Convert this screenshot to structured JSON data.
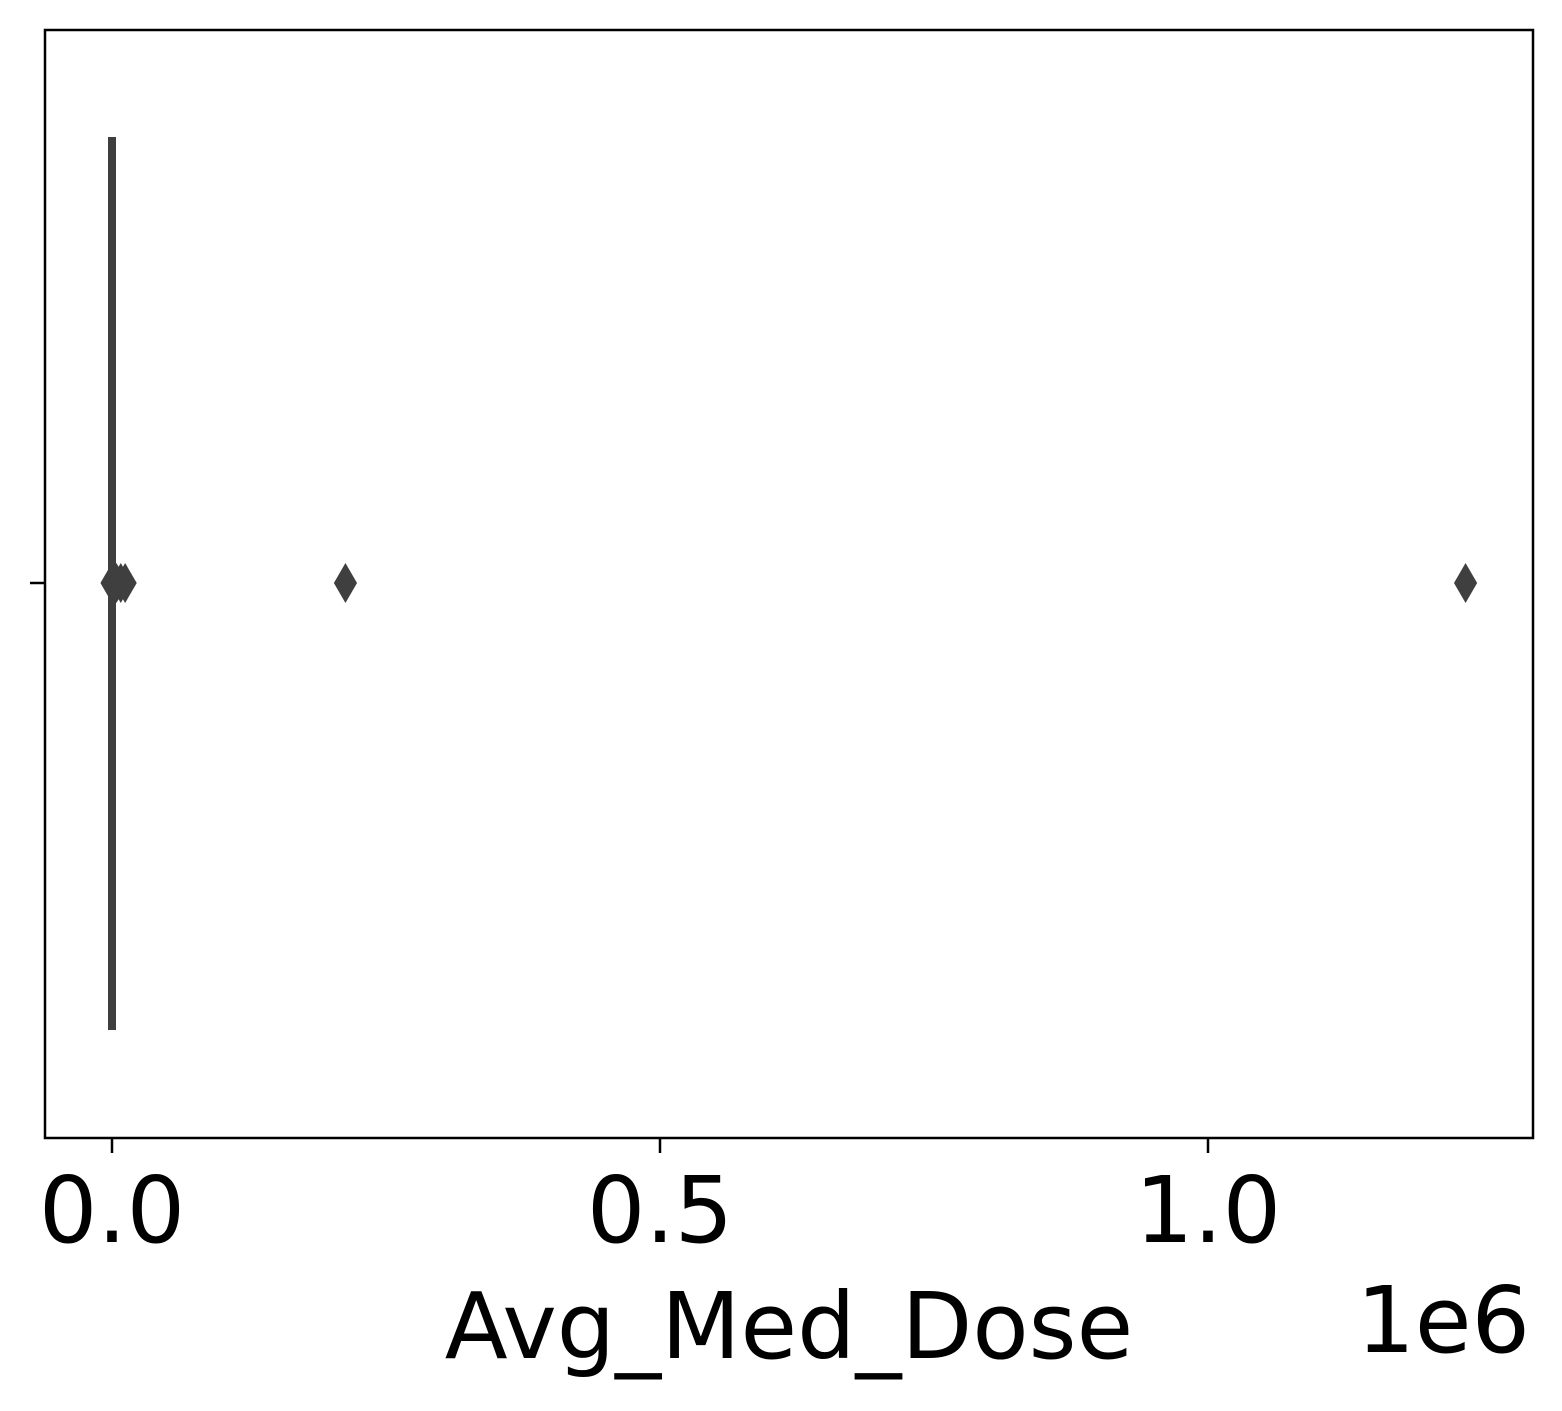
{
  "chart_data": {
    "type": "box",
    "orientation": "horizontal",
    "xlabel": "Avg_Med_Dose",
    "x_offset_label": "1e6",
    "x_multiplier": 1000000,
    "xlim": [
      -0.06,
      1.298
    ],
    "xticks": [
      0.0,
      0.5,
      1.0
    ],
    "xtick_labels": [
      "0.0",
      "0.5",
      "1.0"
    ],
    "box": {
      "q1": 0,
      "median": 0,
      "q3": 0,
      "whisker_low": 0,
      "whisker_high": 0
    },
    "outliers": [
      0.0,
      0.004,
      0.008,
      0.012,
      0.213,
      1.235
    ],
    "box_color": "#3f3f3f",
    "grid": false,
    "legend": false
  }
}
